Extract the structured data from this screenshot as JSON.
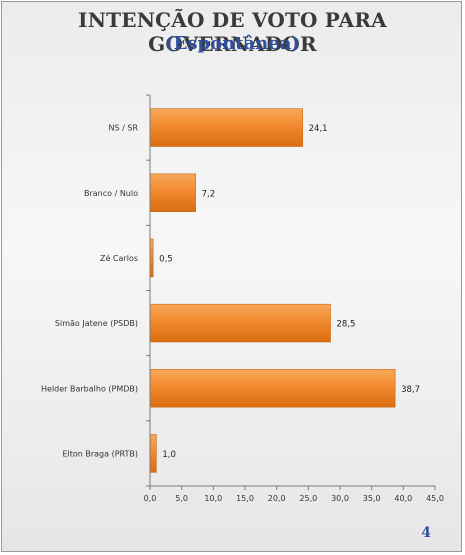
{
  "slide": {
    "title": "INTENÇÃO DE VOTO PARA GOVERNADOR",
    "subtitle": "(Espontânea)",
    "page_number": "4"
  },
  "chart_data": {
    "type": "bar",
    "orientation": "horizontal",
    "categories": [
      "NS / SR",
      "Branco / Nulo",
      "Zé Carlos",
      "Simão Jatene (PSDB)",
      "Helder Barbalho (PMDB)",
      "Elton Braga (PRTB)"
    ],
    "values": [
      24.1,
      7.2,
      0.5,
      28.5,
      38.7,
      1.0
    ],
    "value_labels": [
      "24,1",
      "7,2",
      "0,5",
      "28,5",
      "38,7",
      "1,0"
    ],
    "xlim": [
      0,
      45
    ],
    "x_ticks": [
      "0,0",
      "5,0",
      "10,0",
      "15,0",
      "20,0",
      "25,0",
      "30,0",
      "35,0",
      "40,0",
      "45,0"
    ],
    "bar_color": "#f28a2e",
    "grid": false,
    "legend": "none"
  }
}
